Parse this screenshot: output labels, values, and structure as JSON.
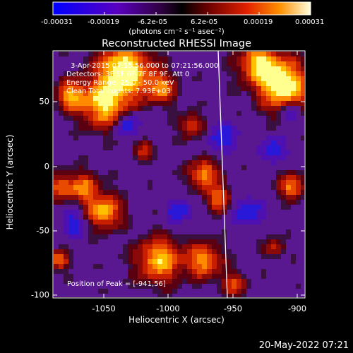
{
  "colorbar": {
    "ticks": [
      "-0.00031",
      "-0.00019",
      "-6.2e-05",
      "6.2e-05",
      "0.00019",
      "0.00031"
    ],
    "units": "(photons cm⁻² s⁻¹ asec⁻²)"
  },
  "plot": {
    "title": "Reconstructed RHESSI Image",
    "xlabel": "Heliocentric X (arcsec)",
    "ylabel": "Heliocentric Y (arcsec)",
    "xticks": [
      "-1050",
      "-1000",
      "-950",
      "-900"
    ],
    "yticks": [
      "50",
      "0",
      "-50",
      "-100"
    ],
    "info": [
      "3-Apr-2015 07:15:56.000 to 07:21:56.000",
      "Detectors: 3F 5F 6F 7F 8F 9F, Att 0",
      "Energy Range: 25.0 - 50.0 keV",
      "Clean     Total counts: 7.93E+03"
    ],
    "peak": "Position of Peak = [-941,56]"
  },
  "footer": {
    "date": "20-May-2022 07:21"
  }
}
